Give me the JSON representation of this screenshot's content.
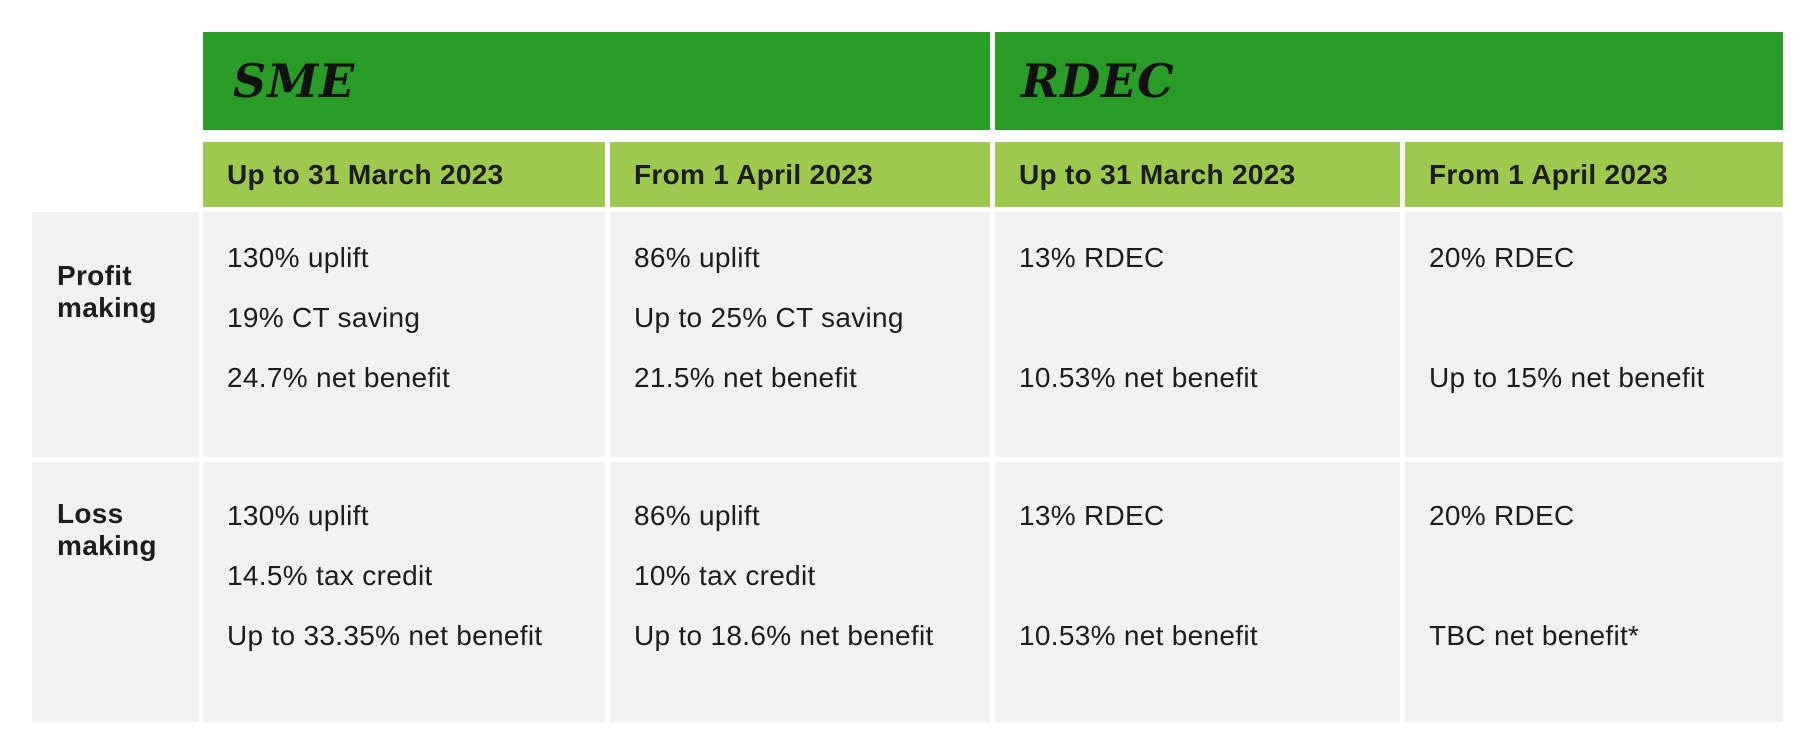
{
  "colors": {
    "header_green": "#2a9c28",
    "subheader_green": "#9cc94e",
    "cell_gray": "#f1f1f1",
    "text": "#1c1c1c",
    "background": "#ffffff"
  },
  "chart_data": {
    "type": "table",
    "column_groups": [
      {
        "label": "SME",
        "columns": [
          "Up to 31 March 2023",
          "From 1 April 2023"
        ]
      },
      {
        "label": "RDEC",
        "columns": [
          "Up to 31 March 2023",
          "From 1 April 2023"
        ]
      }
    ],
    "rows": [
      {
        "label": "Profit making",
        "label_lines": [
          "Profit",
          "making"
        ],
        "cells": [
          [
            "130% uplift",
            "19% CT saving",
            "24.7% net benefit"
          ],
          [
            "86% uplift",
            "Up to 25% CT saving",
            "21.5% net benefit"
          ],
          [
            "13% RDEC",
            "",
            "10.53% net benefit"
          ],
          [
            "20% RDEC",
            "",
            "Up to 15% net benefit"
          ]
        ]
      },
      {
        "label": "Loss making",
        "label_lines": [
          "Loss",
          "making"
        ],
        "cells": [
          [
            "130% uplift",
            "14.5% tax credit",
            "Up to 33.35% net benefit"
          ],
          [
            "86% uplift",
            "10% tax credit",
            "Up to 18.6% net benefit"
          ],
          [
            "13% RDEC",
            "",
            "10.53% net benefit"
          ],
          [
            "20% RDEC",
            "",
            "TBC net benefit*"
          ]
        ]
      }
    ]
  }
}
